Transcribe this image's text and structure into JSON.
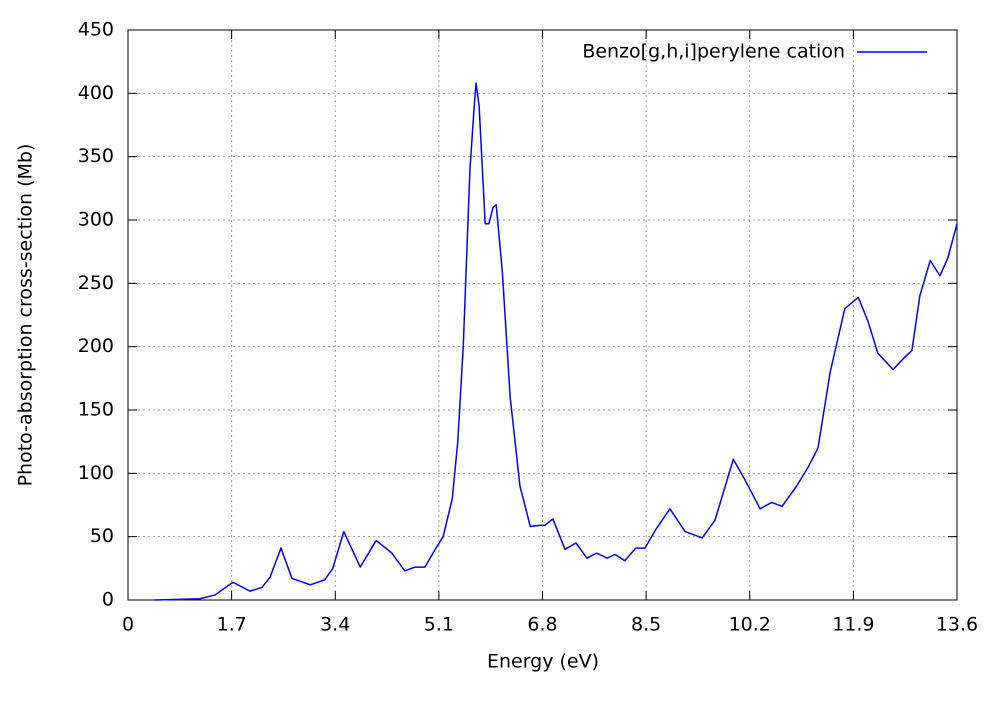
{
  "chart_data": {
    "type": "line",
    "xlabel": "Energy (eV)",
    "ylabel": "Photo-absorption cross-section (Mb)",
    "xlim": [
      0,
      13.6
    ],
    "xticks": [
      0,
      1.7,
      3.4,
      5.1,
      6.8,
      8.5,
      10.2,
      11.9,
      13.6
    ],
    "ylim": [
      0,
      450
    ],
    "yticks": [
      0,
      50,
      100,
      150,
      200,
      250,
      300,
      350,
      400,
      450
    ],
    "grid": true,
    "legend": "upper right",
    "series": [
      {
        "name": "Benzo[g,h,i]perylene cation",
        "color": "#0000ff",
        "x": [
          0.44,
          1.18,
          1.43,
          1.72,
          2.0,
          2.2,
          2.33,
          2.51,
          2.69,
          2.99,
          3.23,
          3.36,
          3.54,
          3.81,
          4.07,
          4.33,
          4.54,
          4.71,
          4.87,
          5.04,
          5.17,
          5.32,
          5.41,
          5.5,
          5.61,
          5.68,
          5.71,
          5.76,
          5.86,
          5.92,
          5.99,
          6.04,
          6.14,
          6.27,
          6.43,
          6.6,
          6.76,
          6.84,
          6.97,
          7.17,
          7.35,
          7.53,
          7.69,
          7.86,
          7.99,
          8.15,
          8.33,
          8.48,
          8.65,
          8.89,
          9.14,
          9.42,
          9.63,
          9.93,
          10.12,
          10.37,
          10.56,
          10.73,
          10.97,
          11.16,
          11.32,
          11.52,
          11.76,
          11.98,
          12.14,
          12.3,
          12.55,
          12.75,
          12.86,
          12.99,
          13.16,
          13.32,
          13.45,
          13.6
        ],
        "values": [
          0,
          1,
          4,
          14,
          7,
          10,
          18,
          41,
          17,
          12,
          16,
          25,
          54,
          26,
          47,
          37,
          23,
          26,
          26,
          40,
          50,
          80,
          125,
          200,
          340,
          390,
          408,
          390,
          297,
          297,
          310,
          312,
          260,
          160,
          90,
          58,
          59,
          59,
          64,
          40,
          45,
          33,
          37,
          33,
          36,
          31,
          41,
          41,
          55,
          72,
          54,
          49,
          63,
          111,
          95,
          72,
          77,
          74,
          90,
          105,
          120,
          180,
          230,
          239,
          220,
          195,
          182,
          192,
          197,
          240,
          268,
          256,
          270,
          297
        ]
      }
    ]
  }
}
